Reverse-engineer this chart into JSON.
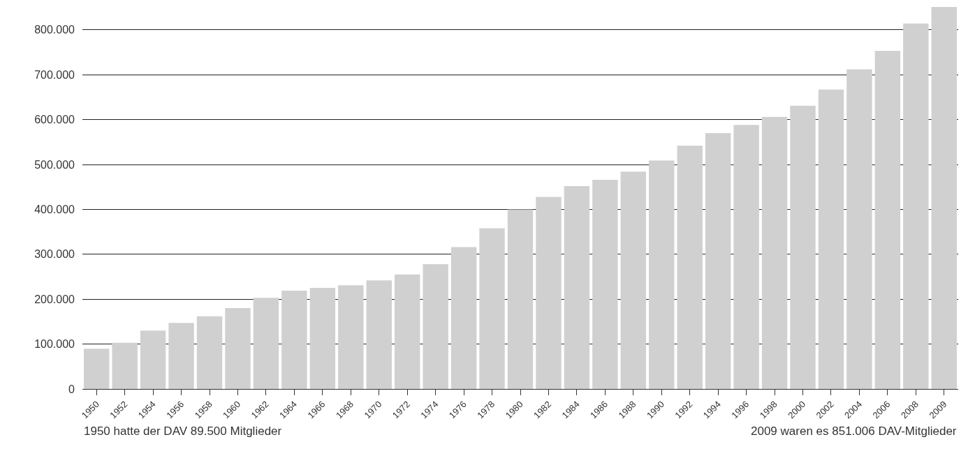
{
  "chart_data": {
    "type": "bar",
    "categories": [
      "1950",
      "1952",
      "1954",
      "1956",
      "1958",
      "1960",
      "1962",
      "1964",
      "1966",
      "1968",
      "1970",
      "1972",
      "1974",
      "1976",
      "1978",
      "1980",
      "1982",
      "1984",
      "1986",
      "1988",
      "1990",
      "1992",
      "1994",
      "1996",
      "1998",
      "2000",
      "2002",
      "2004",
      "2006",
      "2008",
      "2009"
    ],
    "values": [
      89500,
      103000,
      130000,
      147000,
      162000,
      180000,
      203000,
      219000,
      225000,
      231000,
      242000,
      255000,
      278000,
      316000,
      358000,
      400000,
      428000,
      452000,
      466000,
      484000,
      509000,
      542000,
      570000,
      588000,
      606000,
      631000,
      667000,
      712000,
      753000,
      814000,
      851006
    ],
    "color": "#d0d0d1",
    "ylim": [
      0,
      851006
    ],
    "yticks": [
      {
        "value": 0,
        "label": "0"
      },
      {
        "value": 100000,
        "label": "100.000"
      },
      {
        "value": 200000,
        "label": "200.000"
      },
      {
        "value": 300000,
        "label": "300.000"
      },
      {
        "value": 400000,
        "label": "400.000"
      },
      {
        "value": 500000,
        "label": "500.000"
      },
      {
        "value": 600000,
        "label": "600.000"
      },
      {
        "value": 700000,
        "label": "700.000"
      },
      {
        "value": 800000,
        "label": "800.000"
      }
    ],
    "grid": "y",
    "annotations": [
      "1950 hatte der DAV 89.500 Mitglieder",
      "2009 waren es 851.006 DAV-Mitglieder"
    ]
  }
}
